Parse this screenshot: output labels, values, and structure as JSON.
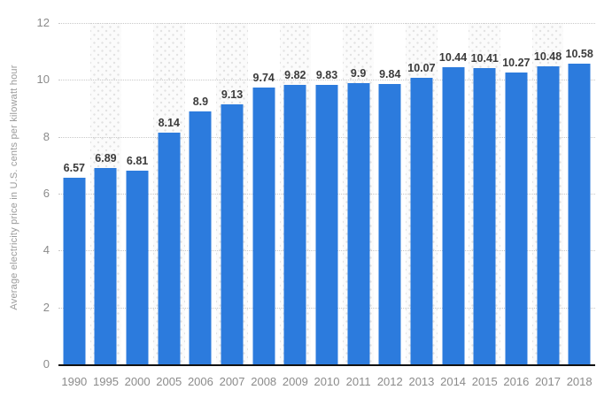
{
  "chart_data": {
    "type": "bar",
    "title": "",
    "xlabel": "",
    "ylabel": "Average electricity price in U.S. cents per kilowatt hour",
    "categories": [
      "1990",
      "1995",
      "2000",
      "2005",
      "2006",
      "2007",
      "2008",
      "2009",
      "2010",
      "2011",
      "2012",
      "2013",
      "2014",
      "2015",
      "2016",
      "2017",
      "2018"
    ],
    "values": [
      6.57,
      6.89,
      6.81,
      8.14,
      8.9,
      9.13,
      9.74,
      9.82,
      9.83,
      9.9,
      9.84,
      10.07,
      10.44,
      10.41,
      10.27,
      10.48,
      10.58
    ],
    "value_labels": [
      "6.57",
      "6.89",
      "6.81",
      "8.14",
      "8.9",
      "9.13",
      "9.74",
      "9.82",
      "9.83",
      "9.9",
      "9.84",
      "10.07",
      "10.44",
      "10.41",
      "10.27",
      "10.48",
      "10.58"
    ],
    "ylim": [
      0,
      12
    ],
    "yticks": [
      0,
      2,
      4,
      6,
      8,
      10,
      12
    ],
    "grid": "horizontal-dotted",
    "legend": "none",
    "striped_columns": "every second column starting with 1995",
    "colors": {
      "bar": "#2c7bdd",
      "value_label": "#3b3b3b",
      "tick_label": "#8b8b8b",
      "axis_title": "#9b9b9b",
      "gridline": "#c8c8c8",
      "axis_line": "#111111",
      "stripe_bg": "#fbfbfb",
      "stripe_dot": "#e2e2e2",
      "background": "#ffffff"
    }
  }
}
